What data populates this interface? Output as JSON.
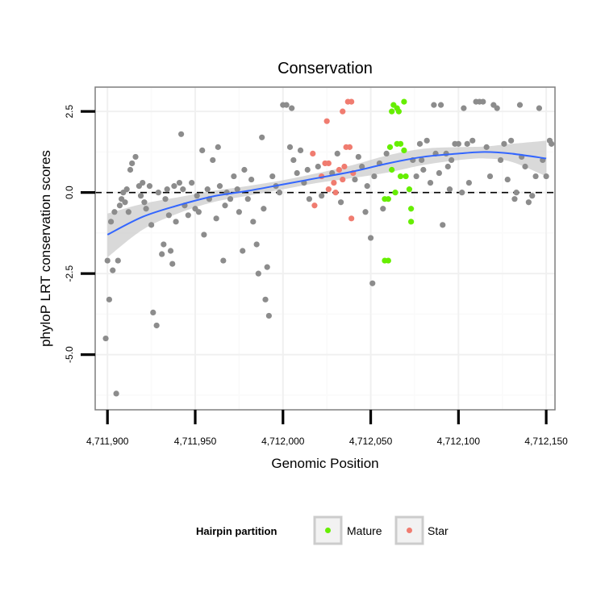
{
  "chart_data": {
    "type": "scatter",
    "title": "Conservation",
    "xlabel": "Genomic Position",
    "ylabel": "phyloP LRT conservation scores",
    "xlim": [
      4711893,
      4712155
    ],
    "ylim": [
      -6.7,
      3.25
    ],
    "x_ticks": [
      4711900,
      4711950,
      4712000,
      4712050,
      4712100,
      4712150
    ],
    "x_tick_labels": [
      "4,711,900",
      "4,711,950",
      "4,712,000",
      "4,712,050",
      "4,712,100",
      "4,712,150"
    ],
    "y_ticks": [
      2.5,
      0.0,
      -2.5,
      -5.0
    ],
    "y_tick_labels": [
      "2.5",
      "0.0",
      "-2.5",
      "-5.0"
    ],
    "reference_line": {
      "y": 0,
      "style": "dashed",
      "color": "#000000"
    },
    "legend": {
      "title": "Hairpin partition",
      "position": "bottom"
    },
    "colors": {
      "other": "#8c8c8c",
      "mature": "#66ee00",
      "star": "#f07c70",
      "smooth": "#3366ff",
      "band": "#cccccc"
    },
    "series": [
      {
        "name": "Mature",
        "color": "#66ee00",
        "in_legend": true,
        "points": [
          [
            4712062,
            2.5
          ],
          [
            4712063,
            2.7
          ],
          [
            4712065,
            2.6
          ],
          [
            4712066,
            2.5
          ],
          [
            4712069,
            2.8
          ],
          [
            4712061,
            1.4
          ],
          [
            4712065,
            1.5
          ],
          [
            4712067,
            1.5
          ],
          [
            4712069,
            1.3
          ],
          [
            4712062,
            0.7
          ],
          [
            4712067,
            0.5
          ],
          [
            4712070,
            0.5
          ],
          [
            4712072,
            0.1
          ],
          [
            4712064,
            0.0
          ],
          [
            4712058,
            -0.2
          ],
          [
            4712060,
            -0.2
          ],
          [
            4712073,
            -0.5
          ],
          [
            4712073,
            -0.9
          ],
          [
            4712058,
            -2.1
          ],
          [
            4712060,
            -2.1
          ]
        ]
      },
      {
        "name": "Star",
        "color": "#f07c70",
        "in_legend": true,
        "points": [
          [
            4712037,
            2.8
          ],
          [
            4712039,
            2.8
          ],
          [
            4712034,
            2.5
          ],
          [
            4712025,
            2.2
          ],
          [
            4712036,
            1.4
          ],
          [
            4712038,
            1.4
          ],
          [
            4712017,
            1.2
          ],
          [
            4712024,
            0.9
          ],
          [
            4712026,
            0.9
          ],
          [
            4712032,
            0.7
          ],
          [
            4712035,
            0.8
          ],
          [
            4712040,
            0.6
          ],
          [
            4712022,
            0.5
          ],
          [
            4712034,
            0.4
          ],
          [
            4712029,
            0.3
          ],
          [
            4712026,
            0.1
          ],
          [
            4712030,
            0.0
          ],
          [
            4712018,
            -0.4
          ],
          [
            4712039,
            -0.8
          ]
        ]
      },
      {
        "name": "Other",
        "color": "#8c8c8c",
        "in_legend": false,
        "points": [
          [
            4711899,
            -4.5
          ],
          [
            4711900,
            -2.1
          ],
          [
            4711901,
            -3.3
          ],
          [
            4711903,
            -2.4
          ],
          [
            4711905,
            -6.2
          ],
          [
            4711906,
            -2.1
          ],
          [
            4711902,
            -0.9
          ],
          [
            4711904,
            -0.6
          ],
          [
            4711907,
            -0.4
          ],
          [
            4711908,
            -0.2
          ],
          [
            4711910,
            -0.3
          ],
          [
            4711912,
            -0.6
          ],
          [
            4711909,
            0.0
          ],
          [
            4711911,
            0.1
          ],
          [
            4711913,
            0.7
          ],
          [
            4711914,
            0.9
          ],
          [
            4711916,
            1.1
          ],
          [
            4711918,
            0.2
          ],
          [
            4711919,
            -0.1
          ],
          [
            4711920,
            0.3
          ],
          [
            4711921,
            -0.3
          ],
          [
            4711922,
            -0.5
          ],
          [
            4711924,
            0.2
          ],
          [
            4711925,
            -1.0
          ],
          [
            4711926,
            -3.7
          ],
          [
            4711928,
            -4.1
          ],
          [
            4711929,
            0.0
          ],
          [
            4711931,
            -1.9
          ],
          [
            4711932,
            -1.6
          ],
          [
            4711933,
            -0.2
          ],
          [
            4711934,
            0.1
          ],
          [
            4711935,
            -0.7
          ],
          [
            4711936,
            -1.8
          ],
          [
            4711937,
            -2.2
          ],
          [
            4711938,
            0.2
          ],
          [
            4711939,
            -0.9
          ],
          [
            4711941,
            0.3
          ],
          [
            4711942,
            1.8
          ],
          [
            4711943,
            0.1
          ],
          [
            4711944,
            -0.4
          ],
          [
            4711946,
            -0.7
          ],
          [
            4711948,
            0.3
          ],
          [
            4711950,
            -0.5
          ],
          [
            4711951,
            -0.1
          ],
          [
            4711952,
            -0.6
          ],
          [
            4711954,
            1.3
          ],
          [
            4711955,
            -1.3
          ],
          [
            4711957,
            0.1
          ],
          [
            4711958,
            -0.2
          ],
          [
            4711960,
            1.0
          ],
          [
            4711962,
            -0.8
          ],
          [
            4711963,
            1.4
          ],
          [
            4711964,
            0.2
          ],
          [
            4711966,
            -2.1
          ],
          [
            4711967,
            -0.4
          ],
          [
            4711968,
            0.0
          ],
          [
            4711970,
            -0.2
          ],
          [
            4711972,
            0.5
          ],
          [
            4711974,
            0.1
          ],
          [
            4711975,
            -0.6
          ],
          [
            4711977,
            -1.8
          ],
          [
            4711978,
            0.7
          ],
          [
            4711980,
            -0.2
          ],
          [
            4711982,
            0.4
          ],
          [
            4711983,
            -0.9
          ],
          [
            4711985,
            -1.6
          ],
          [
            4711986,
            -2.5
          ],
          [
            4711988,
            1.7
          ],
          [
            4711989,
            -0.5
          ],
          [
            4711990,
            -3.3
          ],
          [
            4711991,
            -2.3
          ],
          [
            4711992,
            -3.8
          ],
          [
            4711994,
            0.5
          ],
          [
            4711996,
            0.2
          ],
          [
            4711998,
            0.0
          ],
          [
            4712000,
            2.7
          ],
          [
            4712002,
            2.7
          ],
          [
            4712004,
            1.4
          ],
          [
            4712005,
            2.6
          ],
          [
            4712006,
            1.0
          ],
          [
            4712008,
            0.6
          ],
          [
            4712010,
            1.3
          ],
          [
            4712012,
            0.3
          ],
          [
            4712014,
            0.7
          ],
          [
            4712015,
            -0.2
          ],
          [
            4712020,
            0.8
          ],
          [
            4712022,
            -0.1
          ],
          [
            4712028,
            0.6
          ],
          [
            4712031,
            1.2
          ],
          [
            4712033,
            -0.3
          ],
          [
            4712041,
            0.4
          ],
          [
            4712043,
            1.1
          ],
          [
            4712045,
            0.8
          ],
          [
            4712047,
            -0.6
          ],
          [
            4712048,
            0.2
          ],
          [
            4712050,
            -1.4
          ],
          [
            4712051,
            -2.8
          ],
          [
            4712052,
            0.5
          ],
          [
            4712055,
            0.9
          ],
          [
            4712057,
            -0.5
          ],
          [
            4712059,
            1.2
          ],
          [
            4712074,
            1.0
          ],
          [
            4712076,
            0.5
          ],
          [
            4712078,
            1.5
          ],
          [
            4712079,
            1.0
          ],
          [
            4712080,
            0.7
          ],
          [
            4712082,
            1.6
          ],
          [
            4712084,
            0.3
          ],
          [
            4712086,
            2.7
          ],
          [
            4712087,
            1.2
          ],
          [
            4712089,
            0.6
          ],
          [
            4712090,
            2.7
          ],
          [
            4712091,
            -1.0
          ],
          [
            4712093,
            1.2
          ],
          [
            4712094,
            0.8
          ],
          [
            4712095,
            0.1
          ],
          [
            4712096,
            1.0
          ],
          [
            4712098,
            1.5
          ],
          [
            4712100,
            1.5
          ],
          [
            4712102,
            0.0
          ],
          [
            4712103,
            2.6
          ],
          [
            4712105,
            1.5
          ],
          [
            4712106,
            0.3
          ],
          [
            4712108,
            1.6
          ],
          [
            4712110,
            2.8
          ],
          [
            4712112,
            2.8
          ],
          [
            4712114,
            2.8
          ],
          [
            4712116,
            1.4
          ],
          [
            4712118,
            0.5
          ],
          [
            4712120,
            2.7
          ],
          [
            4712122,
            2.6
          ],
          [
            4712124,
            1.0
          ],
          [
            4712126,
            1.5
          ],
          [
            4712128,
            0.4
          ],
          [
            4712130,
            1.6
          ],
          [
            4712132,
            -0.2
          ],
          [
            4712133,
            0.0
          ],
          [
            4712135,
            2.7
          ],
          [
            4712136,
            1.1
          ],
          [
            4712138,
            0.8
          ],
          [
            4712140,
            -0.3
          ],
          [
            4712142,
            -0.1
          ],
          [
            4712144,
            0.5
          ],
          [
            4712146,
            2.6
          ],
          [
            4712148,
            1.0
          ],
          [
            4712150,
            0.5
          ],
          [
            4712152,
            1.6
          ],
          [
            4712153,
            1.5
          ]
        ]
      }
    ],
    "smooth_fit": {
      "x": [
        4711900,
        4711920,
        4711940,
        4711960,
        4711980,
        4712000,
        4712020,
        4712040,
        4712060,
        4712080,
        4712100,
        4712115,
        4712130,
        4712150
      ],
      "y": [
        -1.3,
        -0.75,
        -0.4,
        -0.12,
        0.05,
        0.25,
        0.45,
        0.65,
        0.9,
        1.1,
        1.2,
        1.25,
        1.2,
        1.05
      ],
      "band_upper": [
        -0.65,
        -0.35,
        -0.15,
        0.05,
        0.2,
        0.38,
        0.6,
        0.85,
        1.15,
        1.35,
        1.4,
        1.42,
        1.5,
        1.6
      ],
      "band_lower": [
        -2.0,
        -1.15,
        -0.65,
        -0.3,
        -0.1,
        0.1,
        0.3,
        0.45,
        0.62,
        0.85,
        1.0,
        1.05,
        0.95,
        0.5
      ]
    }
  }
}
